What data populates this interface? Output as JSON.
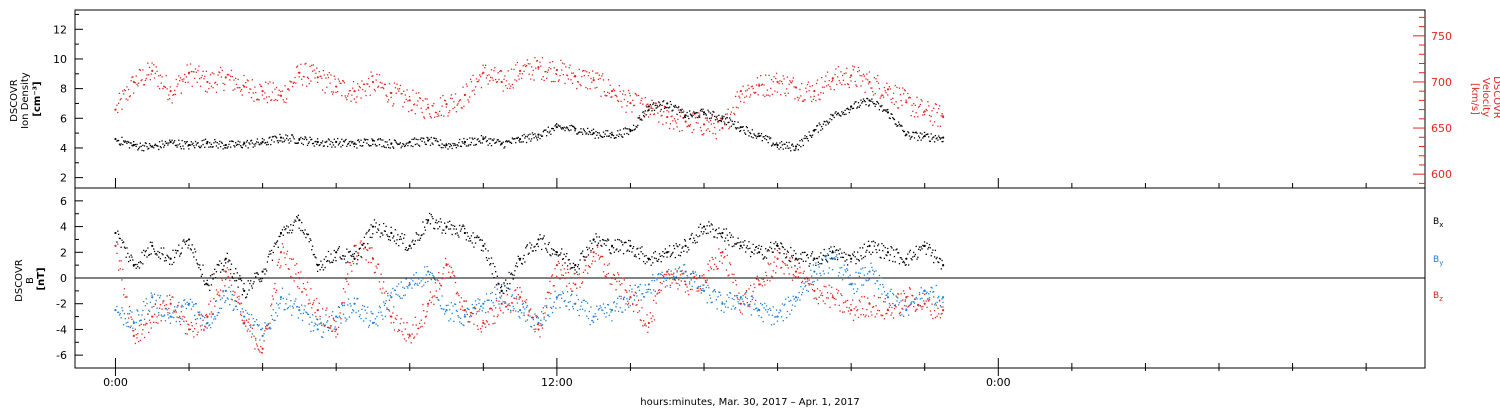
{
  "chart_data": [
    {
      "type": "scatter",
      "panel": "top",
      "ylabel_left_lines": [
        "DSCOVR",
        "Ion Density",
        "[cm⁻³]"
      ],
      "ylabel_right_lines": [
        "DSCOVR",
        "Velocity",
        "[km/s]"
      ],
      "ylim_left": [
        1.3,
        13.3
      ],
      "yticks_left": [
        "2",
        "4",
        "6",
        "8",
        "10",
        "12"
      ],
      "ylim_right": [
        585,
        778
      ],
      "yticks_right": [
        "600",
        "650",
        "700",
        "750"
      ],
      "colors": {
        "density": "#000000",
        "velocity": "#e3261f"
      },
      "series": [
        {
          "quantity": "ion density",
          "axis": "left",
          "x_hours": [
            0,
            0.5,
            1,
            1.5,
            2,
            2.5,
            3,
            3.5,
            4,
            4.5,
            5,
            5.5,
            6,
            6.5,
            7,
            7.5,
            8,
            8.5,
            9,
            9.5,
            10,
            10.5,
            11,
            11.5,
            12,
            12.5,
            13,
            13.5,
            14,
            14.5,
            15,
            15.5,
            16,
            16.5,
            17,
            17.5,
            18,
            18.5,
            19,
            19.5,
            20,
            20.5,
            21,
            21.5,
            22,
            22.5
          ],
          "values": [
            4.6,
            4.2,
            4.1,
            4.4,
            4.2,
            4.4,
            4.2,
            4.3,
            4.4,
            4.7,
            4.6,
            4.4,
            4.4,
            4.3,
            4.5,
            4.3,
            4.4,
            4.5,
            4.2,
            4.4,
            4.6,
            4.3,
            4.6,
            4.9,
            5.4,
            5.3,
            5.0,
            4.9,
            5.2,
            6.8,
            7.0,
            6.2,
            6.4,
            6.0,
            5.4,
            4.8,
            4.2,
            4.1,
            5.2,
            6.2,
            6.8,
            7.2,
            6.4,
            4.9,
            4.8,
            4.7
          ]
        },
        {
          "quantity": "velocity",
          "axis": "right",
          "x_hours": [
            0,
            0.5,
            1,
            1.5,
            2,
            2.5,
            3,
            3.5,
            4,
            4.5,
            5,
            5.5,
            6,
            6.5,
            7,
            7.5,
            8,
            8.5,
            9,
            9.5,
            10,
            10.5,
            11,
            11.5,
            12,
            12.5,
            13,
            13.5,
            14,
            14.5,
            15,
            15.5,
            16,
            16.5,
            17,
            17.5,
            18,
            18.5,
            19,
            19.5,
            20,
            20.5,
            21,
            21.5,
            22,
            22.5
          ],
          "values": [
            670,
            700,
            712,
            690,
            710,
            700,
            705,
            695,
            690,
            685,
            710,
            705,
            695,
            690,
            700,
            688,
            680,
            672,
            676,
            686,
            710,
            700,
            712,
            716,
            713,
            706,
            702,
            690,
            677,
            670,
            662,
            657,
            654,
            650,
            690,
            696,
            700,
            694,
            690,
            704,
            707,
            700,
            692,
            678,
            668,
            662
          ]
        }
      ]
    },
    {
      "type": "scatter",
      "panel": "bottom",
      "ylabel_lines": [
        "DSCOVR",
        "B",
        "[nT]"
      ],
      "ylim": [
        -7,
        7
      ],
      "yticks": [
        "-6",
        "-4",
        "-2",
        "0",
        "2",
        "4",
        "6"
      ],
      "zero_line": true,
      "legend": [
        {
          "base": "B",
          "sub": "x",
          "color": "#000000"
        },
        {
          "base": "B",
          "sub": "y",
          "color": "#1f7fd6"
        },
        {
          "base": "B",
          "sub": "z",
          "color": "#e3261f"
        }
      ],
      "series": [
        {
          "component": "Bx",
          "x_hours": [
            0,
            0.5,
            1,
            1.5,
            2,
            2.5,
            3,
            3.5,
            4,
            4.5,
            5,
            5.5,
            6,
            6.5,
            7,
            7.5,
            8,
            8.5,
            9,
            9.5,
            10,
            10.5,
            11,
            11.5,
            12,
            12.5,
            13,
            13.5,
            14,
            14.5,
            15,
            15.5,
            16,
            16.5,
            17,
            17.5,
            18,
            18.5,
            19,
            19.5,
            20,
            20.5,
            21,
            21.5,
            22,
            22.5
          ],
          "values": [
            3.5,
            1.0,
            2.5,
            1.5,
            3.0,
            -0.5,
            1.5,
            -1.0,
            0.5,
            3.5,
            4.5,
            1.0,
            2.0,
            1.5,
            4.0,
            3.5,
            2.5,
            4.5,
            4.0,
            3.5,
            2.5,
            -1.0,
            1.5,
            3.0,
            2.0,
            1.0,
            3.0,
            2.5,
            2.5,
            1.5,
            2.0,
            2.5,
            4.0,
            3.5,
            2.5,
            2.0,
            2.5,
            1.5,
            1.5,
            2.0,
            1.5,
            2.5,
            2.0,
            1.5,
            2.5,
            1.0
          ]
        },
        {
          "component": "By",
          "x_hours": [
            0,
            0.5,
            1,
            1.5,
            2,
            2.5,
            3,
            3.5,
            4,
            4.5,
            5,
            5.5,
            6,
            6.5,
            7,
            7.5,
            8,
            8.5,
            9,
            9.5,
            10,
            10.5,
            11,
            11.5,
            12,
            12.5,
            13,
            13.5,
            14,
            14.5,
            15,
            15.5,
            16,
            16.5,
            17,
            17.5,
            18,
            18.5,
            19,
            19.5,
            20,
            20.5,
            21,
            21.5,
            22,
            22.5
          ],
          "values": [
            -2.5,
            -3.5,
            -1.5,
            -3.0,
            -2.0,
            -3.5,
            -1.0,
            -3.0,
            -4.5,
            -1.5,
            -2.5,
            -4.0,
            -3.0,
            -2.0,
            -3.5,
            -1.5,
            -0.5,
            0.5,
            -2.5,
            -3.0,
            -2.0,
            -1.0,
            -2.5,
            -3.5,
            -1.5,
            -2.0,
            -3.0,
            -2.5,
            -1.5,
            -0.5,
            0.0,
            0.5,
            -1.0,
            -2.0,
            -1.5,
            -2.5,
            -3.0,
            -1.5,
            0.5,
            1.5,
            -0.5,
            0.5,
            -1.5,
            -2.5,
            -1.0,
            -1.5
          ]
        },
        {
          "component": "Bz",
          "x_hours": [
            0,
            0.5,
            1,
            1.5,
            2,
            2.5,
            3,
            3.5,
            4,
            4.5,
            5,
            5.5,
            6,
            6.5,
            7,
            7.5,
            8,
            8.5,
            9,
            9.5,
            10,
            10.5,
            11,
            11.5,
            12,
            12.5,
            13,
            13.5,
            14,
            14.5,
            15,
            15.5,
            16,
            16.5,
            17,
            17.5,
            18,
            18.5,
            19,
            19.5,
            20,
            20.5,
            21,
            21.5,
            22,
            22.5
          ],
          "values": [
            2.5,
            -4.5,
            -3.0,
            -2.0,
            -4.0,
            -3.0,
            0.5,
            -3.5,
            -5.5,
            2.0,
            0.0,
            -2.5,
            -4.0,
            2.5,
            1.5,
            -3.0,
            -4.5,
            -2.0,
            1.0,
            -2.5,
            -3.5,
            -2.0,
            -1.5,
            -4.0,
            1.0,
            -0.5,
            2.0,
            0.0,
            -1.5,
            -3.5,
            0.5,
            -0.5,
            0.0,
            2.0,
            -2.0,
            -0.5,
            1.5,
            0.5,
            -1.0,
            -1.5,
            -2.5,
            -2.0,
            -2.5,
            -1.5,
            -2.0,
            -2.5
          ]
        }
      ]
    }
  ],
  "x_axis": {
    "start_label_hours": 0,
    "tick_labels": [
      {
        "hours": 0,
        "label": "0:00"
      },
      {
        "hours": 12,
        "label": "12:00"
      },
      {
        "hours": 24,
        "label": "0:00"
      }
    ],
    "minor_tick_hours": 2,
    "range_hours": [
      -1.1,
      35.6
    ],
    "xlabel": "hours:minutes, Mar. 30, 2017 – Apr.  1, 2017"
  }
}
